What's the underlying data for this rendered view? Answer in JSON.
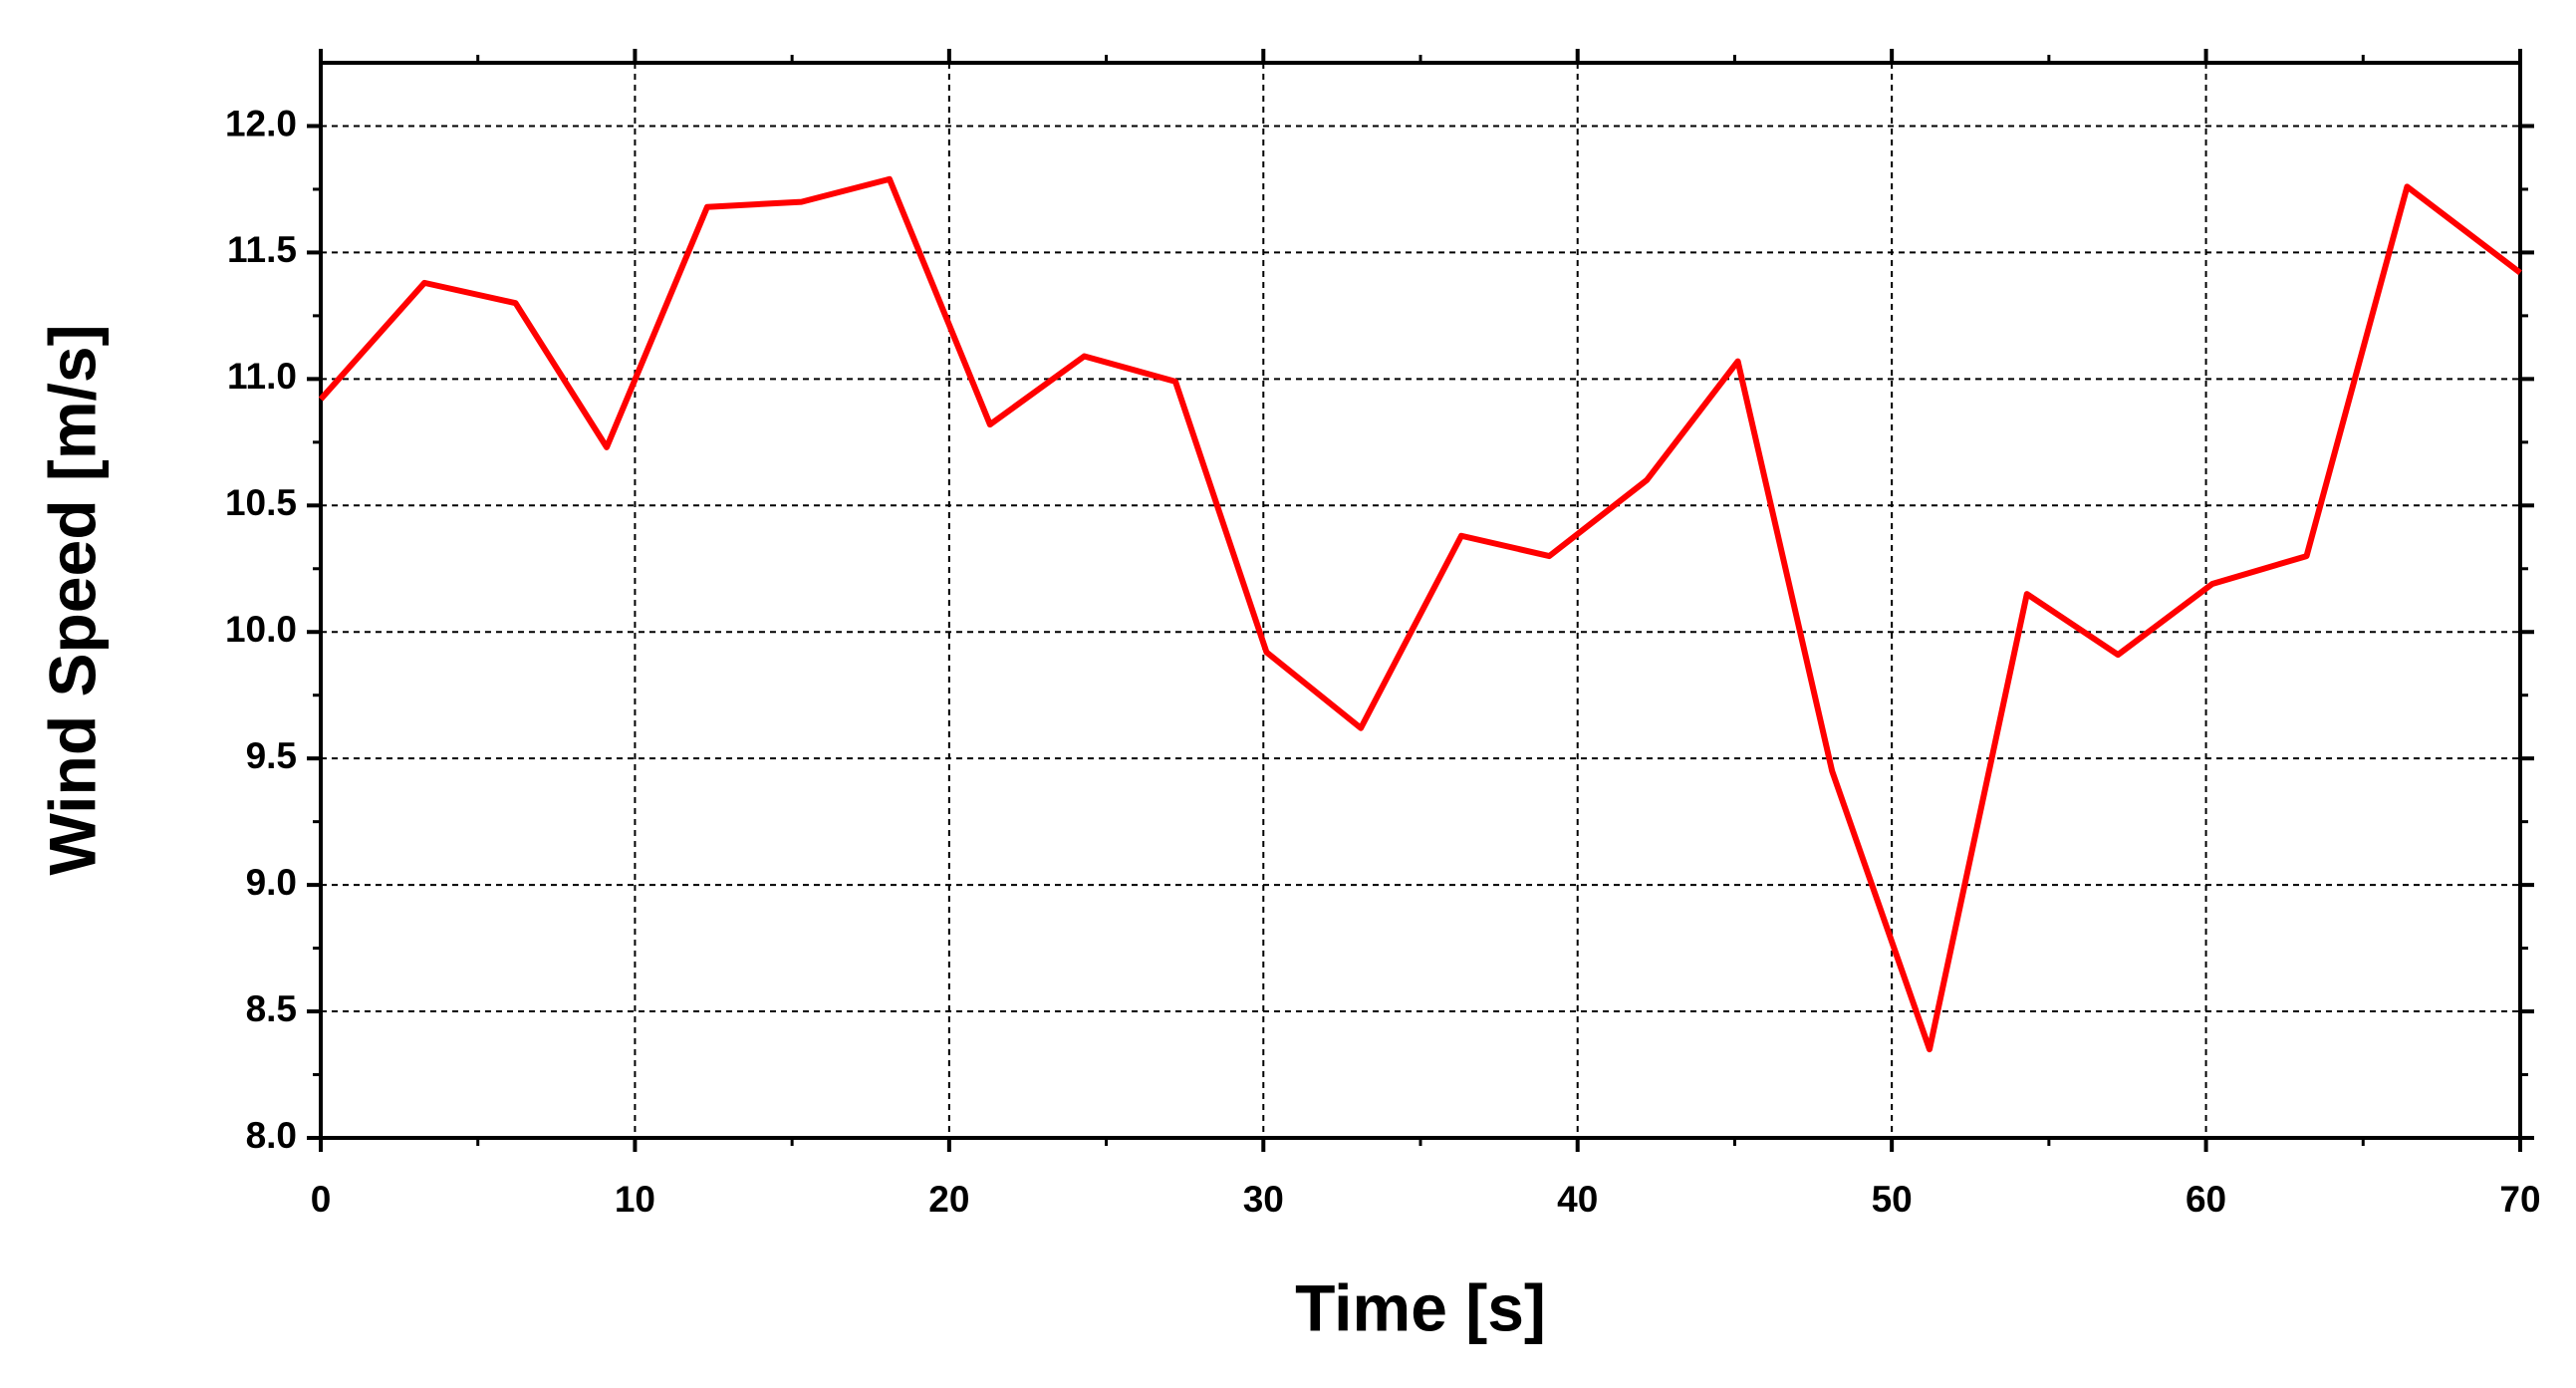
{
  "chart_data": {
    "type": "line",
    "x_label": "Time [s]",
    "y_label": "Wind Speed [m/s]",
    "series": [
      {
        "name": "Wind Speed",
        "color": "#ff0000",
        "x": [
          0,
          3.3,
          6.2,
          9.1,
          12.3,
          15.3,
          18.1,
          21.3,
          24.3,
          27.2,
          30.1,
          33.1,
          36.3,
          39.1,
          42.2,
          45.1,
          48.1,
          51.2,
          54.3,
          57.2,
          60.2,
          63.2,
          66.4,
          70
        ],
        "values": [
          10.92,
          11.38,
          11.3,
          10.73,
          11.68,
          11.7,
          11.79,
          10.82,
          11.09,
          10.99,
          9.92,
          9.62,
          10.38,
          10.3,
          10.6,
          11.07,
          9.45,
          8.35,
          10.15,
          9.91,
          10.19,
          10.3,
          11.76,
          11.42
        ]
      }
    ],
    "xlim": [
      0,
      70
    ],
    "xticks": [
      0,
      10,
      20,
      30,
      40,
      50,
      60,
      70
    ],
    "ylim": [
      8,
      12.25
    ],
    "yticks": [
      {
        "value": 8,
        "label": "8.0"
      },
      8.5,
      {
        "value": 9,
        "label": "9.0"
      },
      9.5,
      {
        "value": 10,
        "label": "10.0"
      },
      10.5,
      {
        "value": 11,
        "label": "11.0"
      },
      11.5,
      {
        "value": 12,
        "label": "12.0"
      }
    ],
    "grid": true
  }
}
